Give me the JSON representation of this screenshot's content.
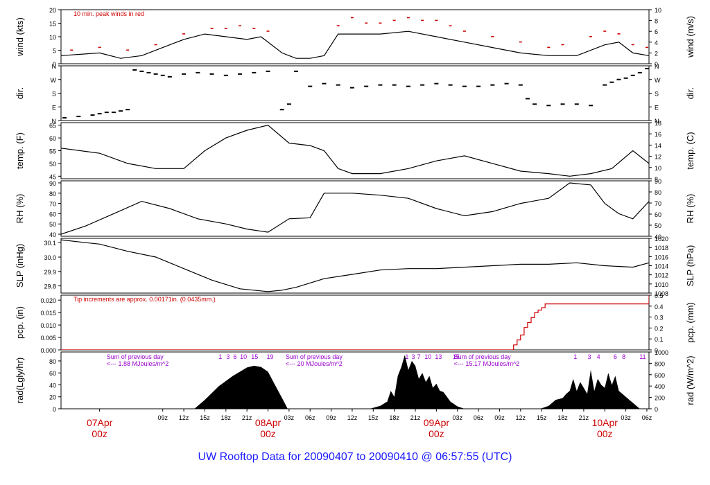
{
  "page": {
    "title": "UW Rooftop Data for 20090407  to  20090410 @ 06:57:55  (UTC)"
  },
  "colors": {
    "axis": "#000000",
    "accent": "#cc0000",
    "purple": "#9900cc",
    "title": "#1a1aff"
  },
  "time_axis": {
    "start_hour": -5.5,
    "end_hour": 78.3,
    "tick_labels": [
      {
        "h": 9,
        "label": "09z"
      },
      {
        "h": 12,
        "label": "12z"
      },
      {
        "h": 15,
        "label": "15z"
      },
      {
        "h": 18,
        "label": "18z"
      },
      {
        "h": 21,
        "label": "21z"
      },
      {
        "h": 27,
        "label": "03z"
      },
      {
        "h": 30,
        "label": "06z"
      },
      {
        "h": 33,
        "label": "09z"
      },
      {
        "h": 36,
        "label": "12z"
      },
      {
        "h": 39,
        "label": "15z"
      },
      {
        "h": 42,
        "label": "18z"
      },
      {
        "h": 45,
        "label": "21z"
      },
      {
        "h": 51,
        "label": "03z"
      },
      {
        "h": 54,
        "label": "06z"
      },
      {
        "h": 57,
        "label": "09z"
      },
      {
        "h": 60,
        "label": "12z"
      },
      {
        "h": 63,
        "label": "15z"
      },
      {
        "h": 66,
        "label": "18z"
      },
      {
        "h": 69,
        "label": "21z"
      },
      {
        "h": 75,
        "label": "03z"
      },
      {
        "h": 78,
        "label": "06z"
      }
    ],
    "day_labels": [
      {
        "h": 0,
        "line1": "07Apr",
        "line2": "00z"
      },
      {
        "h": 24,
        "line1": "08Apr",
        "line2": "00z"
      },
      {
        "h": 48,
        "line1": "09Apr",
        "line2": "00z"
      },
      {
        "h": 72,
        "line1": "10Apr",
        "line2": "00z"
      }
    ]
  },
  "chart_data": [
    {
      "type": "line",
      "left_label": "wind (kts)",
      "right_label": "wind (m/s)",
      "annotation": "10 min. peak winds in red",
      "ylim": [
        0,
        20
      ],
      "left_ticks": [
        0,
        5,
        10,
        15,
        20
      ],
      "right_ticks": [
        "0",
        "2",
        "4",
        "6",
        "8",
        "10"
      ],
      "series": [
        {
          "kind": "line",
          "color": "#000000",
          "x": [
            -5.5,
            0,
            3,
            6,
            9,
            12,
            15,
            18,
            21,
            23,
            26,
            27,
            28,
            30,
            32,
            34,
            36,
            40,
            44,
            48,
            52,
            56,
            60,
            64,
            68,
            72,
            74,
            76,
            78.3
          ],
          "y": [
            3,
            4,
            2,
            3,
            6,
            9,
            11,
            10,
            9,
            10,
            4,
            3,
            2,
            2,
            3,
            11,
            11,
            11,
            12,
            10,
            8,
            6,
            4,
            3,
            3,
            7,
            8,
            4,
            3
          ]
        },
        {
          "kind": "points",
          "color": "#cc0000",
          "x": [
            -4,
            0,
            4,
            8,
            12,
            16,
            18,
            20,
            22,
            24,
            34,
            36,
            38,
            40,
            42,
            44,
            46,
            48,
            50,
            52,
            56,
            60,
            64,
            66,
            70,
            72,
            74,
            76,
            78
          ],
          "y": [
            5,
            6,
            5,
            7,
            11,
            13,
            13,
            14,
            13,
            12,
            14,
            17,
            15,
            15,
            16,
            17,
            16,
            16,
            14,
            12,
            10,
            8,
            6,
            7,
            10,
            12,
            11,
            7,
            6
          ]
        }
      ]
    },
    {
      "type": "scatter",
      "left_label": "dir.",
      "right_label": "dir.",
      "ylim": [
        0,
        4
      ],
      "left_ticks": [
        "N",
        "E",
        "S",
        "W",
        "N"
      ],
      "right_ticks": [
        "N",
        "E",
        "S",
        "W",
        "N"
      ],
      "series": [
        {
          "kind": "dirpoints",
          "color": "#000000",
          "x": [
            -5,
            -3,
            -1,
            0,
            1,
            2,
            3,
            4,
            5,
            6,
            7,
            8,
            9,
            10,
            12,
            14,
            16,
            18,
            20,
            22,
            24,
            26,
            27,
            28,
            30,
            32,
            34,
            36,
            38,
            40,
            42,
            44,
            46,
            48,
            50,
            52,
            54,
            56,
            58,
            60,
            61,
            62,
            64,
            66,
            68,
            70,
            72,
            73,
            74,
            75,
            76,
            77,
            78
          ],
          "y": [
            0.2,
            0.3,
            0.4,
            0.5,
            0.6,
            0.6,
            0.7,
            0.8,
            3.7,
            3.6,
            3.5,
            3.4,
            3.3,
            3.2,
            3.4,
            3.5,
            3.4,
            3.3,
            3.4,
            3.5,
            3.6,
            0.8,
            1.2,
            3.6,
            2.5,
            2.7,
            2.6,
            2.4,
            2.5,
            2.6,
            2.6,
            2.5,
            2.6,
            2.7,
            2.6,
            2.5,
            2.5,
            2.6,
            2.7,
            2.6,
            1.6,
            1.2,
            1.1,
            1.2,
            1.2,
            1.1,
            2.6,
            2.8,
            3.0,
            3.1,
            3.3,
            3.5,
            3.8
          ]
        }
      ]
    },
    {
      "type": "line",
      "left_label": "temp. (F)",
      "right_label": "temp. (C)",
      "ylim": [
        44,
        66
      ],
      "left_ticks": [
        45,
        50,
        55,
        60,
        65
      ],
      "right_ticks": [
        "8",
        "10",
        "12",
        "14",
        "16",
        "18"
      ],
      "series": [
        {
          "kind": "line",
          "color": "#000000",
          "x": [
            -5.5,
            0,
            4,
            8,
            12,
            15,
            18,
            21,
            24,
            27,
            30,
            32,
            34,
            36,
            40,
            44,
            48,
            52,
            56,
            60,
            64,
            67,
            70,
            73,
            76,
            78.3
          ],
          "y": [
            56,
            54,
            50,
            48,
            48,
            55,
            60,
            63,
            65,
            58,
            57,
            55,
            48,
            46,
            46,
            48,
            51,
            53,
            50,
            47,
            46,
            45,
            46,
            48,
            55,
            50
          ]
        }
      ]
    },
    {
      "type": "line",
      "left_label": "RH (%)",
      "right_label": "RH (%)",
      "ylim": [
        38,
        92
      ],
      "left_ticks": [
        40,
        50,
        60,
        70,
        80,
        90
      ],
      "right_ticks": [
        "40",
        "50",
        "60",
        "70",
        "80",
        "90"
      ],
      "series": [
        {
          "kind": "line",
          "color": "#000000",
          "x": [
            -5.5,
            -2,
            2,
            6,
            10,
            14,
            18,
            21,
            24,
            27,
            30,
            32,
            36,
            40,
            44,
            48,
            52,
            56,
            60,
            64,
            67,
            70,
            72,
            74,
            76,
            78.3
          ],
          "y": [
            40,
            48,
            60,
            72,
            65,
            55,
            50,
            45,
            42,
            55,
            56,
            80,
            80,
            78,
            75,
            65,
            58,
            62,
            70,
            75,
            90,
            88,
            70,
            60,
            55,
            72
          ]
        }
      ]
    },
    {
      "type": "line",
      "left_label": "SLP (inHg)",
      "right_label": "SLP (hPa)",
      "ylim": [
        29.75,
        30.13
      ],
      "left_ticks": [
        "29.8",
        "29.9",
        "30.0",
        "30.1"
      ],
      "left_tick_vals": [
        29.8,
        29.9,
        30.0,
        30.1
      ],
      "right_ticks": [
        "1008",
        "1010",
        "1012",
        "1014",
        "1016",
        "1018",
        "1020"
      ],
      "series": [
        {
          "kind": "line",
          "color": "#000000",
          "x": [
            -5.5,
            -2,
            0,
            4,
            8,
            12,
            16,
            20,
            24,
            26,
            28,
            30,
            32,
            36,
            40,
            44,
            48,
            52,
            56,
            60,
            64,
            68,
            72,
            76,
            78.3
          ],
          "y": [
            30.12,
            30.1,
            30.09,
            30.04,
            30.0,
            29.92,
            29.84,
            29.78,
            29.76,
            29.77,
            29.79,
            29.82,
            29.85,
            29.88,
            29.91,
            29.92,
            29.92,
            29.93,
            29.94,
            29.95,
            29.95,
            29.96,
            29.94,
            29.93,
            29.96
          ]
        }
      ]
    },
    {
      "type": "line",
      "left_label": "pcp. (in)",
      "right_label": "pcp. (mm)",
      "annotation": "Tip increments are approx. 0.00171in. (0.0435mm.)",
      "ylim": [
        0,
        0.022
      ],
      "left_ticks": [
        "0.000",
        "0.005",
        "0.010",
        "0.015",
        "0.020"
      ],
      "left_tick_vals": [
        0,
        0.005,
        0.01,
        0.015,
        0.02
      ],
      "right_ticks": [
        "0",
        "0.1",
        "0.2",
        "0.3",
        "0.4",
        "0.5"
      ],
      "series": [
        {
          "kind": "step",
          "color": "#cc0000",
          "x": [
            -5.5,
            58.5,
            59,
            59.5,
            60,
            60.5,
            61,
            61.5,
            62,
            62.5,
            63,
            63.5,
            77.5,
            78.3
          ],
          "y": [
            0,
            0,
            0.002,
            0.004,
            0.006,
            0.009,
            0.011,
            0.013,
            0.015,
            0.016,
            0.017,
            0.0185,
            0.0185,
            0.022
          ]
        }
      ]
    },
    {
      "type": "area",
      "left_label": "rad(Lgly/hr)",
      "right_label": "rad (W/m^2)",
      "ylim": [
        0,
        95
      ],
      "left_ticks": [
        0,
        20,
        40,
        60,
        80
      ],
      "right_ticks": [
        "0",
        "200",
        "400",
        "600",
        "800",
        "1000"
      ],
      "notes": [
        {
          "h": 1,
          "lines": [
            "Sum of previous day",
            "<--- 1.88 MJoules/m^2"
          ]
        },
        {
          "h": 26.5,
          "lines": [
            "Sum of previous day",
            "<--- 20 MJoules/m^2"
          ]
        },
        {
          "h": 50.5,
          "lines": [
            "Sum of previous day",
            "<--- 15.17 MJoules/m^2"
          ]
        }
      ],
      "hour_marks": [
        {
          "h": 17.2,
          "label": "1"
        },
        {
          "h": 18.3,
          "label": "3"
        },
        {
          "h": 19.3,
          "label": "6"
        },
        {
          "h": 20.5,
          "label": "10"
        },
        {
          "h": 22.1,
          "label": "15"
        },
        {
          "h": 24.3,
          "label": "19"
        },
        {
          "h": 43.8,
          "label": "1"
        },
        {
          "h": 44.7,
          "label": "3"
        },
        {
          "h": 45.5,
          "label": "7"
        },
        {
          "h": 46.8,
          "label": "10"
        },
        {
          "h": 48.3,
          "label": "13"
        },
        {
          "h": 50.8,
          "label": "15"
        },
        {
          "h": 67.8,
          "label": "1"
        },
        {
          "h": 69.8,
          "label": "3"
        },
        {
          "h": 71.1,
          "label": "4"
        },
        {
          "h": 73.5,
          "label": "6"
        },
        {
          "h": 74.7,
          "label": "8"
        },
        {
          "h": 77.4,
          "label": "11"
        }
      ],
      "series": [
        {
          "kind": "area",
          "color": "#000000",
          "x": [
            13.5,
            15,
            17,
            19,
            20,
            21,
            22,
            23,
            24,
            25,
            26,
            26.8,
            38.5,
            40,
            41,
            41.5,
            42,
            42.5,
            43,
            43.5,
            44,
            44.5,
            45,
            45.5,
            46,
            46.5,
            47,
            47.5,
            48,
            48.5,
            49,
            49.5,
            50,
            51,
            52,
            62.8,
            64,
            65,
            66,
            66.5,
            67,
            67.5,
            68,
            68.5,
            69,
            69.5,
            70,
            70.5,
            71,
            71.5,
            72,
            72.5,
            73,
            73.5,
            74,
            74.5,
            75,
            75.5,
            76,
            76.5,
            77
          ],
          "y": [
            0,
            15,
            38,
            55,
            62,
            69,
            72,
            70,
            62,
            40,
            18,
            0,
            0,
            5,
            12,
            30,
            20,
            55,
            70,
            90,
            65,
            80,
            72,
            50,
            60,
            45,
            55,
            35,
            42,
            30,
            28,
            20,
            12,
            4,
            0,
            0,
            5,
            15,
            18,
            25,
            30,
            50,
            30,
            45,
            35,
            25,
            65,
            30,
            50,
            40,
            35,
            60,
            40,
            55,
            30,
            25,
            20,
            15,
            10,
            5,
            0
          ]
        }
      ]
    }
  ]
}
